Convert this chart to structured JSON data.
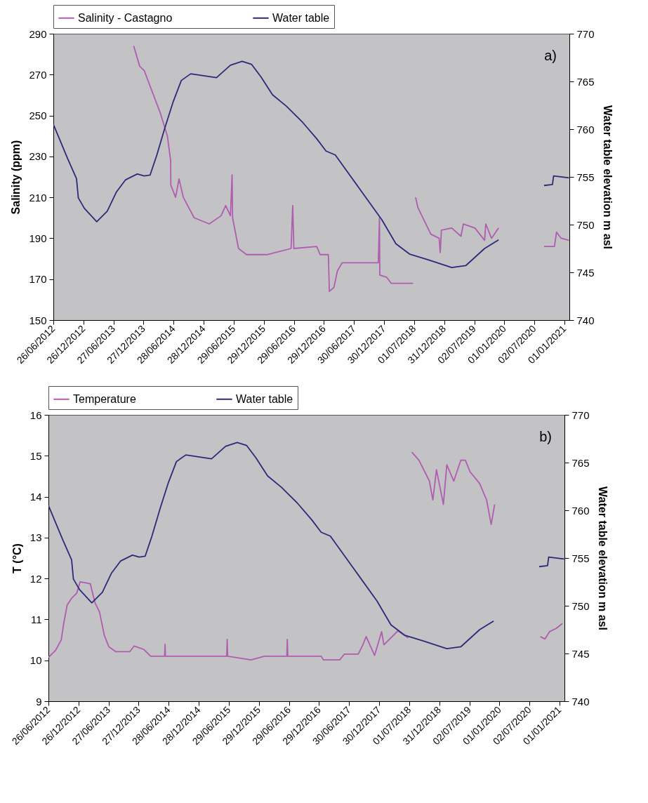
{
  "chart_data": [
    {
      "type": "line",
      "ylabel": "Salinity (ppm)",
      "y2label": "Water table elevation m asl",
      "annotations": [
        "a)"
      ],
      "legend": "top",
      "xlim": [
        "2012-06-26",
        "2021-01-31"
      ],
      "xticks": [
        {
          "value": "2012-06-26",
          "label": "26/06/2012"
        },
        {
          "value": "2012-12-26",
          "label": "26/12/2012"
        },
        {
          "value": "2013-06-27",
          "label": "27/06/2013"
        },
        {
          "value": "2013-12-27",
          "label": "27/12/2013"
        },
        {
          "value": "2014-06-28",
          "label": "28/06/2014"
        },
        {
          "value": "2014-12-28",
          "label": "28/12/2014"
        },
        {
          "value": "2015-06-29",
          "label": "29/06/2015"
        },
        {
          "value": "2015-12-29",
          "label": "29/12/2015"
        },
        {
          "value": "2016-06-29",
          "label": "29/06/2016"
        },
        {
          "value": "2016-12-29",
          "label": "29/12/2016"
        },
        {
          "value": "2017-06-30",
          "label": "30/06/2017"
        },
        {
          "value": "2017-12-30",
          "label": "30/12/2017"
        },
        {
          "value": "2018-07-01",
          "label": "01/07/2018"
        },
        {
          "value": "2018-12-31",
          "label": "31/12/2018"
        },
        {
          "value": "2019-07-02",
          "label": "02/07/2019"
        },
        {
          "value": "2020-01-01",
          "label": "01/01/2020"
        },
        {
          "value": "2020-07-02",
          "label": "02/07/2020"
        },
        {
          "value": "2021-01-01",
          "label": "01/01/2021"
        }
      ],
      "ylim": [
        150,
        290
      ],
      "yticks": [
        150,
        170,
        190,
        210,
        230,
        250,
        270,
        290
      ],
      "y2lim": [
        740,
        770
      ],
      "y2ticks": [
        740,
        745,
        750,
        755,
        760,
        765,
        770
      ],
      "series": [
        {
          "name": "Salinity - Castagno",
          "color": "#b05cb0",
          "x": [
            "2013-10-28",
            "2013-12-04",
            "2013-12-31",
            "2014-04-09",
            "2014-05-21",
            "2014-06-10",
            "2014-06-11",
            "2014-07-10",
            "2014-07-31",
            "2014-08-26",
            "2014-10-31",
            "2015-01-31",
            "2015-04-13",
            "2015-05-11",
            "2015-06-09",
            "2015-06-19",
            "2015-06-22",
            "2015-07-28",
            "2015-09-15",
            "2016-01-21",
            "2016-06-12",
            "2016-06-22",
            "2016-06-29",
            "2016-11-15",
            "2016-12-06",
            "2016-12-20",
            "2017-01-25",
            "2017-01-31",
            "2017-02-28",
            "2017-03-21",
            "2017-04-19",
            "2017-09-08",
            "2017-11-25",
            "2017-12-02",
            "2017-12-04",
            "2018-01-14",
            "2018-02-11",
            "2018-06-25",
            "2018-07-02",
            "2018-07-10",
            "2018-07-24",
            "2018-08-29",
            "2018-10-11",
            "2018-11-30",
            "2018-12-07",
            "2018-12-14",
            "2019-02-15",
            "2019-04-12",
            "2019-04-27",
            "2019-07-06",
            "2019-09-03",
            "2019-09-10",
            "2019-10-15",
            "2019-11-27",
            "2020-05-01",
            "2020-08-30",
            "2020-11-01",
            "2020-11-14",
            "2020-12-12",
            "2021-01-29"
          ],
          "values": [
            284,
            274,
            272,
            251,
            240,
            228,
            216,
            210,
            219,
            210,
            200,
            197,
            201,
            206,
            201,
            221,
            200,
            185,
            182,
            182,
            185,
            206,
            185,
            186,
            182,
            182,
            182,
            164,
            166,
            174,
            178,
            178,
            178,
            200,
            172,
            171,
            168,
            168,
            null,
            210,
            205,
            199,
            192,
            190,
            183,
            194,
            195,
            191,
            197,
            195,
            189,
            197,
            190,
            195,
            null,
            186,
            186,
            193,
            190,
            189
          ]
        },
        {
          "name": "Water table",
          "color": "#2b2a7a",
          "axis": "y2",
          "x": [
            "2012-06-26",
            "2012-09-19",
            "2012-11-14",
            "2012-11-25",
            "2013-01-01",
            "2013-03-17",
            "2013-05-20",
            "2013-07-14",
            "2013-09-09",
            "2013-11-19",
            "2013-12-31",
            "2014-02-05",
            "2014-03-18",
            "2014-05-07",
            "2014-06-26",
            "2014-08-14",
            "2014-10-10",
            "2015-03-16",
            "2015-06-09",
            "2015-08-19",
            "2015-10-15",
            "2015-12-11",
            "2016-02-20",
            "2016-05-15",
            "2016-08-22",
            "2016-11-15",
            "2017-01-11",
            "2017-03-08",
            "2017-07-28",
            "2017-12-17",
            "2018-03-12",
            "2018-06-05",
            "2018-09-28",
            "2019-02-15",
            "2019-05-11",
            "2019-09-03",
            "2019-11-27",
            "2020-05-01",
            "2020-08-30",
            "2020-10-20",
            "2020-10-27",
            "2021-01-29"
          ],
          "values": [
            760.5,
            757,
            754.8,
            752.8,
            751.7,
            750.3,
            751.4,
            753.4,
            754.7,
            755.3,
            755.1,
            755.2,
            757.3,
            760.2,
            762.9,
            765.1,
            765.8,
            765.4,
            766.7,
            767.1,
            766.8,
            765.5,
            763.6,
            762.4,
            760.7,
            759,
            757.7,
            757.3,
            753.9,
            750.5,
            748,
            746.9,
            746.3,
            745.5,
            745.7,
            747.5,
            748.4,
            null,
            754.1,
            754.2,
            755.1,
            754.9
          ]
        }
      ]
    },
    {
      "type": "line",
      "ylabel": "T (°C)",
      "y2label": "Water table elevation m asl",
      "annotations": [
        "b)"
      ],
      "legend": "top",
      "xlim": [
        "2012-06-26",
        "2021-01-31"
      ],
      "xticks": [
        {
          "value": "2012-06-26",
          "label": "26/06/2012"
        },
        {
          "value": "2012-12-26",
          "label": "26/12/2012"
        },
        {
          "value": "2013-06-27",
          "label": "27/06/2013"
        },
        {
          "value": "2013-12-27",
          "label": "27/12/2013"
        },
        {
          "value": "2014-06-28",
          "label": "28/06/2014"
        },
        {
          "value": "2014-12-28",
          "label": "28/12/2014"
        },
        {
          "value": "2015-06-29",
          "label": "29/06/2015"
        },
        {
          "value": "2015-12-29",
          "label": "29/12/2015"
        },
        {
          "value": "2016-06-29",
          "label": "29/06/2016"
        },
        {
          "value": "2016-12-29",
          "label": "29/12/2016"
        },
        {
          "value": "2017-06-30",
          "label": "30/06/2017"
        },
        {
          "value": "2017-12-30",
          "label": "30/12/2017"
        },
        {
          "value": "2018-07-01",
          "label": "01/07/2018"
        },
        {
          "value": "2018-12-31",
          "label": "31/12/2018"
        },
        {
          "value": "2019-07-02",
          "label": "02/07/2019"
        },
        {
          "value": "2020-01-01",
          "label": "01/01/2020"
        },
        {
          "value": "2020-07-02",
          "label": "02/07/2020"
        },
        {
          "value": "2021-01-01",
          "label": "01/01/2021"
        }
      ],
      "ylim": [
        9,
        16
      ],
      "yticks": [
        9,
        10,
        11,
        12,
        13,
        14,
        15,
        16
      ],
      "y2lim": [
        740,
        770
      ],
      "y2ticks": [
        740,
        745,
        750,
        755,
        760,
        765,
        770
      ],
      "series": [
        {
          "name": "Temperature",
          "color": "#b05cb0",
          "x": [
            "2012-06-26",
            "2012-08-08",
            "2012-09-12",
            "2012-09-27",
            "2012-10-18",
            "2012-11-15",
            "2012-12-15",
            "2013-01-05",
            "2013-03-08",
            "2013-04-05",
            "2013-05-03",
            "2013-06-01",
            "2013-06-29",
            "2013-08-10",
            "2013-11-03",
            "2013-11-30",
            "2014-01-26",
            "2014-03-10",
            "2014-06-03",
            "2014-06-06",
            "2014-06-08",
            "2015-06-16",
            "2015-06-19",
            "2015-06-22",
            "2015-11-11",
            "2016-02-01",
            "2016-06-16",
            "2016-06-19",
            "2016-06-22",
            "2017-01-11",
            "2017-01-25",
            "2017-05-04",
            "2017-06-01",
            "2017-08-25",
            "2017-09-22",
            "2017-10-12",
            "2017-12-02",
            "2018-01-14",
            "2018-01-28",
            "2018-04-23",
            "2018-06-25",
            "2018-07-05",
            "2018-07-17",
            "2018-08-29",
            "2018-10-11",
            "2018-11-01",
            "2018-11-22",
            "2018-12-14",
            "2019-01-25",
            "2019-02-15",
            "2019-03-29",
            "2019-05-11",
            "2019-06-08",
            "2019-07-06",
            "2019-09-03",
            "2019-10-15",
            "2019-11-12",
            "2019-12-03",
            "2020-05-01",
            "2020-09-06",
            "2020-10-04",
            "2020-11-01",
            "2020-12-12",
            "2021-01-18"
          ],
          "values": [
            10.07,
            10.24,
            10.5,
            10.9,
            11.35,
            11.52,
            11.64,
            11.92,
            11.87,
            11.41,
            11.18,
            10.61,
            10.33,
            10.21,
            10.21,
            10.35,
            10.27,
            10.1,
            10.1,
            10.39,
            10.1,
            10.1,
            10.51,
            10.1,
            10.01,
            10.1,
            10.1,
            10.51,
            10.1,
            10.1,
            10.01,
            10.01,
            10.15,
            10.15,
            10.38,
            10.58,
            10.12,
            10.7,
            10.38,
            10.72,
            10.55,
            null,
            15.09,
            14.89,
            14.55,
            14.38,
            13.92,
            14.66,
            13.81,
            14.78,
            14.38,
            14.89,
            14.89,
            14.61,
            14.32,
            13.92,
            13.32,
            13.81,
            null,
            10.58,
            10.52,
            10.7,
            10.78,
            10.9
          ]
        },
        {
          "name": "Water table",
          "color": "#2b2a7a",
          "axis": "y2",
          "x": [
            "2012-06-26",
            "2012-09-19",
            "2012-11-14",
            "2012-11-25",
            "2013-01-01",
            "2013-03-17",
            "2013-05-20",
            "2013-07-14",
            "2013-09-09",
            "2013-11-19",
            "2013-12-31",
            "2014-02-05",
            "2014-03-18",
            "2014-05-07",
            "2014-06-26",
            "2014-08-14",
            "2014-10-10",
            "2015-03-16",
            "2015-06-09",
            "2015-08-19",
            "2015-10-15",
            "2015-12-11",
            "2016-02-20",
            "2016-05-15",
            "2016-08-22",
            "2016-11-15",
            "2017-01-11",
            "2017-03-08",
            "2017-07-28",
            "2017-12-17",
            "2018-03-12",
            "2018-06-05",
            "2018-09-28",
            "2019-02-15",
            "2019-05-11",
            "2019-09-03",
            "2019-11-27",
            "2020-05-01",
            "2020-08-30",
            "2020-10-20",
            "2020-10-27",
            "2021-01-29"
          ],
          "values": [
            760.5,
            757,
            754.8,
            752.8,
            751.7,
            750.3,
            751.4,
            753.4,
            754.7,
            755.3,
            755.1,
            755.2,
            757.3,
            760.2,
            762.9,
            765.1,
            765.8,
            765.4,
            766.7,
            767.1,
            766.8,
            765.5,
            763.6,
            762.4,
            760.7,
            759,
            757.7,
            757.3,
            753.9,
            750.5,
            748,
            746.9,
            746.3,
            745.5,
            745.7,
            747.5,
            748.4,
            null,
            754.1,
            754.2,
            755.1,
            754.9
          ]
        }
      ]
    }
  ]
}
